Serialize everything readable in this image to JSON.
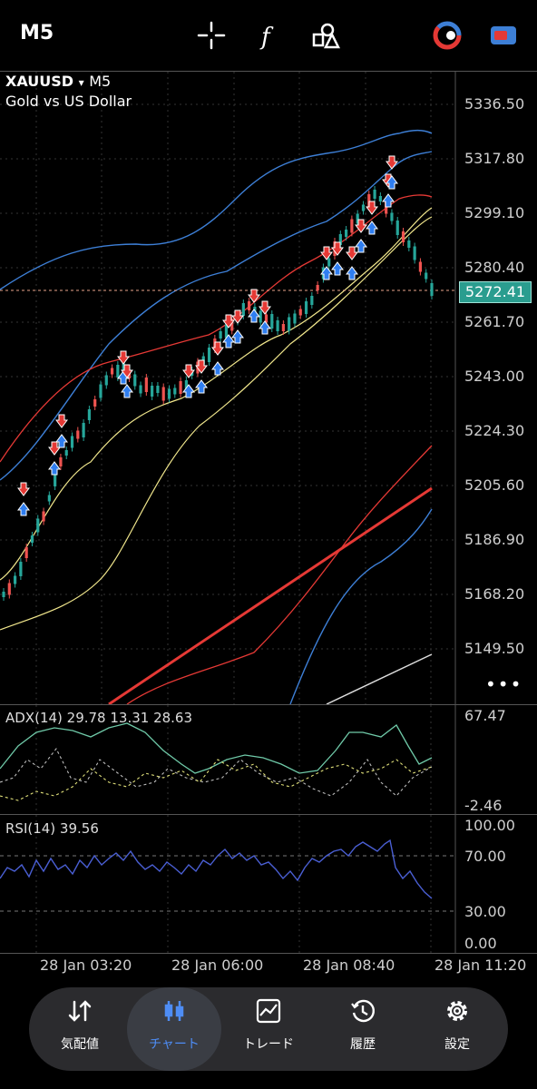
{
  "toolbar": {
    "timeframe": "M5",
    "icons": [
      "crosshair-icon",
      "function-icon",
      "shapes-icon",
      "trade-toggle-icon",
      "account-icon"
    ]
  },
  "symbol": {
    "name": "XAUUSD",
    "arrow": "▾",
    "timeframe": "M5",
    "description": "Gold vs US Dollar"
  },
  "price_axis": [
    "5336.50",
    "5317.80",
    "5299.10",
    "5280.40",
    "5261.70",
    "5243.00",
    "5224.30",
    "5205.60",
    "5186.90",
    "5168.20",
    "5149.50"
  ],
  "current_price": "5272.41",
  "adx": {
    "label": "ADX(14) 29.78 13.31 28.63",
    "max": "67.47",
    "min": "-2.46"
  },
  "rsi": {
    "label": "RSI(14) 39.56",
    "levels": [
      "100.00",
      "70.00",
      "30.00",
      "0.00"
    ]
  },
  "time_axis": [
    "28 Jan 03:20",
    "28 Jan 06:00",
    "28 Jan 08:40",
    "28 Jan 11:20"
  ],
  "nav": [
    {
      "label": "気配値",
      "icon": "quotes-icon"
    },
    {
      "label": "チャート",
      "icon": "chart-icon"
    },
    {
      "label": "トレード",
      "icon": "trade-icon"
    },
    {
      "label": "履歴",
      "icon": "history-icon"
    },
    {
      "label": "設定",
      "icon": "settings-icon"
    }
  ],
  "colors": {
    "up": "#26a69a",
    "down": "#ef5350",
    "bb_blue": "#3d7fd6",
    "ma_red": "#e53935",
    "ma_yellow": "#f0e68c",
    "rsi_line": "#4a5fd4",
    "accent": "#4e8df5"
  }
}
